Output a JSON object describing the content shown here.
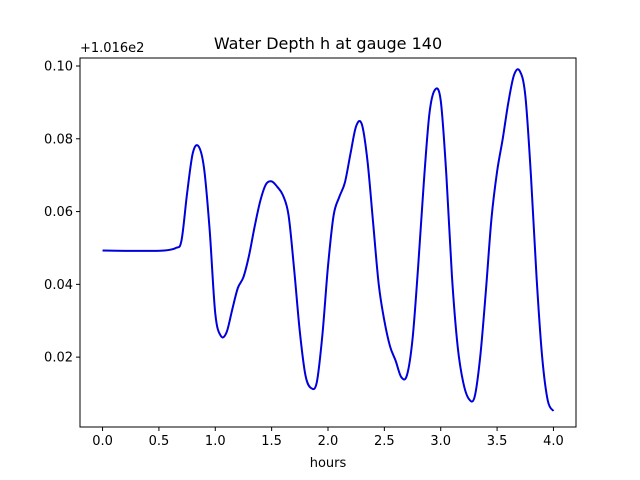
{
  "chart_data": {
    "type": "line",
    "title": "Water Depth h at gauge 140",
    "xlabel": "hours",
    "ylabel": "",
    "y_offset_label": "+1.016e2",
    "xlim": [
      -0.2,
      4.2
    ],
    "ylim": [
      0.0008,
      0.1022
    ],
    "x_ticks": [
      0.0,
      0.5,
      1.0,
      1.5,
      2.0,
      2.5,
      3.0,
      3.5,
      4.0
    ],
    "x_tick_labels": [
      "0.0",
      "0.5",
      "1.0",
      "1.5",
      "2.0",
      "2.5",
      "3.0",
      "3.5",
      "4.0"
    ],
    "y_ticks": [
      0.02,
      0.04,
      0.06,
      0.08,
      0.1
    ],
    "y_tick_labels": [
      "0.02",
      "0.04",
      "0.06",
      "0.08",
      "0.10"
    ],
    "grid": false,
    "series": [
      {
        "color": "#0000dd",
        "points": [
          [
            0.0,
            0.0493
          ],
          [
            0.2,
            0.0492
          ],
          [
            0.4,
            0.0492
          ],
          [
            0.55,
            0.0493
          ],
          [
            0.65,
            0.05
          ],
          [
            0.7,
            0.052
          ],
          [
            0.75,
            0.065
          ],
          [
            0.8,
            0.076
          ],
          [
            0.85,
            0.078
          ],
          [
            0.9,
            0.072
          ],
          [
            0.95,
            0.055
          ],
          [
            1.0,
            0.032
          ],
          [
            1.05,
            0.0258
          ],
          [
            1.1,
            0.0268
          ],
          [
            1.15,
            0.033
          ],
          [
            1.2,
            0.039
          ],
          [
            1.25,
            0.042
          ],
          [
            1.3,
            0.048
          ],
          [
            1.35,
            0.056
          ],
          [
            1.4,
            0.063
          ],
          [
            1.45,
            0.0675
          ],
          [
            1.5,
            0.0683
          ],
          [
            1.55,
            0.0668
          ],
          [
            1.6,
            0.0645
          ],
          [
            1.65,
            0.059
          ],
          [
            1.7,
            0.044
          ],
          [
            1.75,
            0.027
          ],
          [
            1.8,
            0.015
          ],
          [
            1.85,
            0.0115
          ],
          [
            1.9,
            0.013
          ],
          [
            1.95,
            0.026
          ],
          [
            2.0,
            0.045
          ],
          [
            2.05,
            0.059
          ],
          [
            2.1,
            0.064
          ],
          [
            2.15,
            0.068
          ],
          [
            2.2,
            0.076
          ],
          [
            2.25,
            0.0835
          ],
          [
            2.3,
            0.084
          ],
          [
            2.35,
            0.074
          ],
          [
            2.4,
            0.057
          ],
          [
            2.45,
            0.04
          ],
          [
            2.5,
            0.03
          ],
          [
            2.55,
            0.023
          ],
          [
            2.6,
            0.019
          ],
          [
            2.65,
            0.0145
          ],
          [
            2.7,
            0.015
          ],
          [
            2.75,
            0.025
          ],
          [
            2.8,
            0.045
          ],
          [
            2.85,
            0.068
          ],
          [
            2.9,
            0.087
          ],
          [
            2.95,
            0.0935
          ],
          [
            3.0,
            0.0905
          ],
          [
            3.05,
            0.07
          ],
          [
            3.1,
            0.042
          ],
          [
            3.15,
            0.023
          ],
          [
            3.2,
            0.013
          ],
          [
            3.25,
            0.0085
          ],
          [
            3.3,
            0.009
          ],
          [
            3.35,
            0.02
          ],
          [
            3.4,
            0.038
          ],
          [
            3.45,
            0.058
          ],
          [
            3.5,
            0.071
          ],
          [
            3.55,
            0.08
          ],
          [
            3.6,
            0.09
          ],
          [
            3.65,
            0.0975
          ],
          [
            3.7,
            0.0987
          ],
          [
            3.75,
            0.092
          ],
          [
            3.8,
            0.07
          ],
          [
            3.85,
            0.042
          ],
          [
            3.9,
            0.02
          ],
          [
            3.95,
            0.008
          ],
          [
            4.0,
            0.0052
          ]
        ]
      }
    ]
  }
}
